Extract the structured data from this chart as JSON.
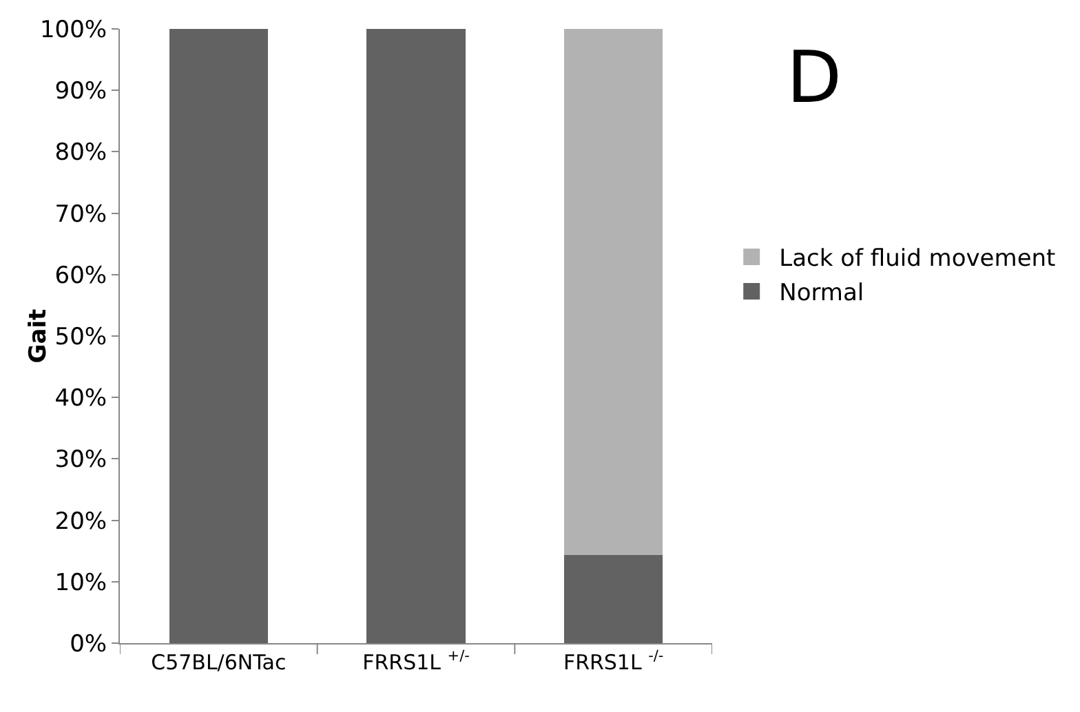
{
  "chart_data": {
    "type": "bar",
    "stacked": true,
    "ylabel": "Gait",
    "categories": [
      "C57BL/6NTac",
      "FRRS1L $^{+/-}$",
      "FRRS1L $^{-/-}$"
    ],
    "series": [
      {
        "name": "Normal",
        "color": "#626262",
        "values": [
          100,
          100,
          14.3
        ]
      },
      {
        "name": "Lack of fluid movement",
        "color": "#b2b2b2",
        "values": [
          0,
          0,
          85.7
        ]
      }
    ],
    "ylim": [
      0,
      100
    ],
    "yticks": [
      {
        "value": 0,
        "label": "0%"
      },
      {
        "value": 10,
        "label": "10%"
      },
      {
        "value": 20,
        "label": "20%"
      },
      {
        "value": 30,
        "label": "30%"
      },
      {
        "value": 40,
        "label": "40%"
      },
      {
        "value": 50,
        "label": "50%"
      },
      {
        "value": 60,
        "label": "60%"
      },
      {
        "value": 70,
        "label": "70%"
      },
      {
        "value": 80,
        "label": "80%"
      },
      {
        "value": 90,
        "label": "90%"
      },
      {
        "value": 100,
        "label": "100%"
      }
    ],
    "grid": false,
    "legend": "right",
    "annotations": [
      "D"
    ]
  }
}
